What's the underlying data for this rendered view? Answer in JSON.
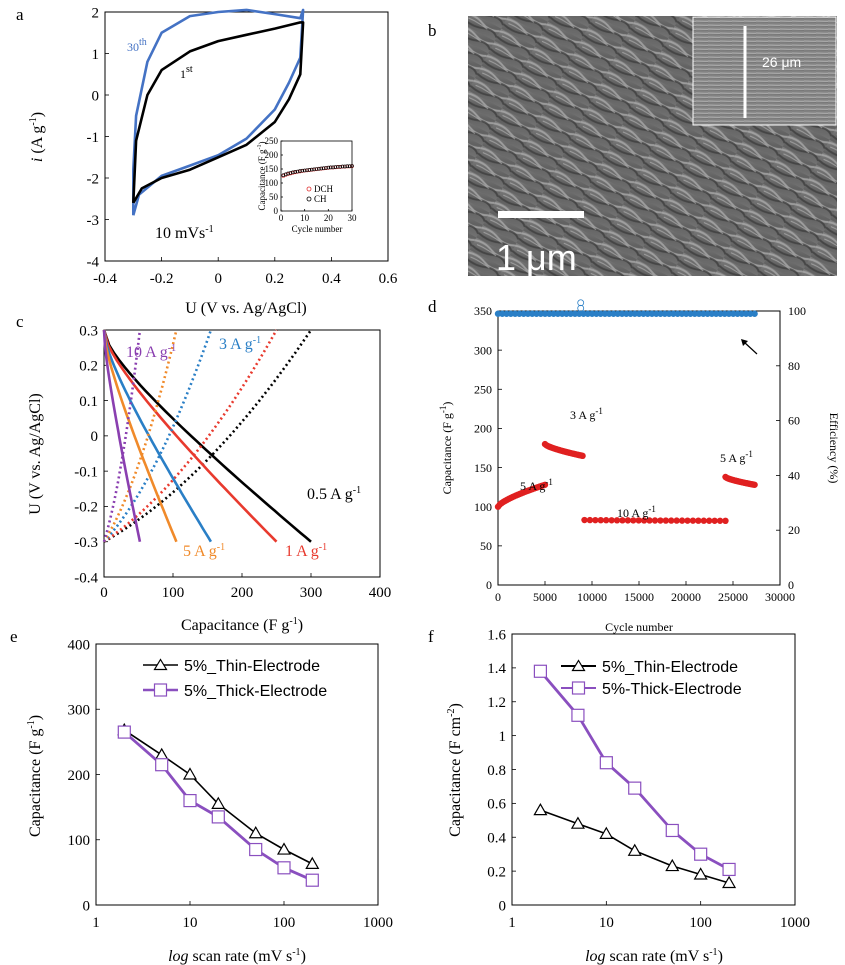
{
  "figure": {
    "panels": [
      "a",
      "b",
      "c",
      "d",
      "e",
      "f"
    ]
  },
  "chart_data": [
    {
      "id": "a",
      "type": "line",
      "xlabel": "U (V vs. Ag/AgCl)",
      "ylabel": "i (A g-1)",
      "xlim": [
        -0.4,
        0.6
      ],
      "ylim": [
        -4,
        2
      ],
      "x_ticks": [
        "-0.4",
        "-0.2",
        "0",
        "0.2",
        "0.4",
        "0.6"
      ],
      "y_ticks": [
        "-4",
        "-3",
        "-2",
        "-1",
        "0",
        "1",
        "2"
      ],
      "annotation": "10 mVs-1",
      "series": [
        {
          "name": "30th",
          "color": "#4472c4",
          "x": [
            -0.3,
            -0.28,
            -0.2,
            -0.1,
            0.0,
            0.1,
            0.2,
            0.25,
            0.29,
            0.3,
            0.29,
            0.2,
            0.1,
            0.0,
            -0.1,
            -0.2,
            -0.25,
            -0.29,
            -0.3,
            -0.3
          ],
          "y": [
            -2.9,
            -2.4,
            -1.95,
            -1.7,
            -1.45,
            -1.05,
            -0.35,
            0.3,
            0.9,
            2.05,
            1.85,
            1.95,
            2.05,
            2.0,
            1.9,
            1.5,
            0.8,
            -0.5,
            -1.8,
            -2.9
          ]
        },
        {
          "name": "1st",
          "color": "#000000",
          "x": [
            -0.3,
            -0.27,
            -0.2,
            -0.1,
            0.0,
            0.1,
            0.2,
            0.25,
            0.29,
            0.3,
            0.29,
            0.2,
            0.1,
            0.0,
            -0.1,
            -0.2,
            -0.25,
            -0.29,
            -0.3
          ],
          "y": [
            -2.6,
            -2.25,
            -2.0,
            -1.8,
            -1.5,
            -1.2,
            -0.65,
            -0.1,
            0.5,
            1.75,
            1.75,
            1.6,
            1.45,
            1.3,
            1.05,
            0.6,
            0.0,
            -1.1,
            -2.6
          ]
        }
      ],
      "inset": {
        "xlabel": "Cycle number",
        "ylabel": "Capacitance (F g-1)",
        "xlim": [
          0,
          30
        ],
        "ylim": [
          0,
          250
        ],
        "x_ticks": [
          "0",
          "10",
          "20",
          "30"
        ],
        "y_ticks": [
          "0",
          "50",
          "100",
          "150",
          "200",
          "250"
        ],
        "legend": [
          "DCH",
          "CH"
        ],
        "series": [
          {
            "name": "DCH",
            "color": "#e03030",
            "x": [
              1,
              2,
              3,
              4,
              5,
              6,
              7,
              8,
              9,
              10,
              11,
              12,
              13,
              14,
              15,
              16,
              17,
              18,
              19,
              20,
              21,
              22,
              23,
              24,
              25,
              26,
              27,
              28,
              29,
              30
            ],
            "y": [
              125,
              129,
              132,
              134,
              136,
              138,
              140,
              141,
              143,
              144,
              145,
              146,
              147,
              148,
              149,
              150,
              151,
              152,
              153,
              154,
              155,
              155,
              156,
              157,
              157,
              158,
              158,
              159,
              159,
              160
            ]
          },
          {
            "name": "CH",
            "color": "#000000",
            "x": [
              1,
              2,
              3,
              4,
              5,
              6,
              7,
              8,
              9,
              10,
              11,
              12,
              13,
              14,
              15,
              16,
              17,
              18,
              19,
              20,
              21,
              22,
              23,
              24,
              25,
              26,
              27,
              28,
              29,
              30
            ],
            "y": [
              128,
              131,
              134,
              136,
              138,
              140,
              141,
              143,
              144,
              145,
              146,
              147,
              148,
              149,
              150,
              151,
              152,
              153,
              154,
              155,
              156,
              156,
              157,
              158,
              158,
              159,
              159,
              160,
              160,
              161
            ]
          }
        ]
      }
    },
    {
      "id": "b",
      "type": "image",
      "scale_bar": "1 μm",
      "inset_scale": "26 μm"
    },
    {
      "id": "c",
      "type": "line",
      "xlabel": "Capacitance (F g-1)",
      "ylabel": "U (V vs. Ag/AgCl)",
      "xlim": [
        0,
        400
      ],
      "ylim": [
        -0.4,
        0.3
      ],
      "x_ticks": [
        "0",
        "100",
        "200",
        "300",
        "400"
      ],
      "y_ticks": [
        "-0.4",
        "-0.3",
        "-0.2",
        "-0.1",
        "0",
        "0.1",
        "0.2",
        "0.3"
      ],
      "labels": [
        "10 A g-1",
        "3 A g-1",
        "5 A g-1",
        "1 A g-1",
        "0.5 A g-1"
      ],
      "series": [
        {
          "name": "0.5 A g-1",
          "color": "#000000",
          "discharge_end": 300,
          "charge_end": 300
        },
        {
          "name": "1 A g-1",
          "color": "#e83a2e",
          "discharge_end": 250,
          "charge_end": 250
        },
        {
          "name": "3 A g-1",
          "color": "#2a7fc6",
          "discharge_end": 155,
          "charge_end": 155
        },
        {
          "name": "5 A g-1",
          "color": "#f08a2a",
          "discharge_end": 105,
          "charge_end": 105
        },
        {
          "name": "10 A g-1",
          "color": "#8a3fb0",
          "discharge_end": 52,
          "charge_end": 52
        }
      ]
    },
    {
      "id": "d",
      "type": "scatter",
      "xlabel": "Cycle number",
      "ylabel": "Capacitance (F g-1)",
      "y2label": "Efficiency (%)",
      "xlim": [
        0,
        30000
      ],
      "ylim": [
        0,
        350
      ],
      "y2lim": [
        0,
        100
      ],
      "x_ticks": [
        "0",
        "5000",
        "10000",
        "15000",
        "20000",
        "25000",
        "30000"
      ],
      "y_ticks": [
        "0",
        "50",
        "100",
        "150",
        "200",
        "250",
        "300",
        "350"
      ],
      "y2_ticks": [
        "0",
        "20",
        "40",
        "60",
        "80",
        "100"
      ],
      "labels": [
        "5 A g-1",
        "3 A g-1",
        "10 A g-1",
        "5 A g-1"
      ],
      "series": [
        {
          "name": "Capacitance",
          "color": "#e02020",
          "segments": [
            {
              "x0": 0,
              "x1": 5000,
              "y0": 100,
              "y1": 128
            },
            {
              "x0": 5000,
              "x1": 9000,
              "y0": 180,
              "y1": 165
            },
            {
              "x0": 9200,
              "x1": 24200,
              "y0": 83,
              "y1": 82
            },
            {
              "x0": 24200,
              "x1": 27300,
              "y0": 138,
              "y1": 128
            }
          ]
        },
        {
          "name": "Efficiency",
          "color": "#2a7fc6",
          "x0": 0,
          "x1": 27300,
          "y": 99
        }
      ]
    },
    {
      "id": "e",
      "type": "line",
      "xlabel": "log scan rate (mV s-1)",
      "ylabel": "Capacitance (F g-1)",
      "xscale": "log",
      "xlim": [
        1,
        1000
      ],
      "ylim": [
        0,
        400
      ],
      "x_ticks": [
        "1",
        "10",
        "100",
        "1000"
      ],
      "y_ticks": [
        "0",
        "100",
        "200",
        "300",
        "400"
      ],
      "x": [
        2,
        5,
        10,
        20,
        50,
        100,
        200
      ],
      "series": [
        {
          "name": "5%_Thin-Electrode",
          "color": "#000000",
          "marker": "triangle",
          "values": [
            268,
            230,
            200,
            155,
            110,
            85,
            63
          ]
        },
        {
          "name": "5%_Thick-Electrode",
          "color": "#8a4fbf",
          "marker": "square",
          "values": [
            265,
            215,
            160,
            135,
            85,
            57,
            38
          ]
        }
      ]
    },
    {
      "id": "f",
      "type": "line",
      "xlabel": "log scan rate (mV s-1)",
      "ylabel": "Capacitance (F cm-2)",
      "xscale": "log",
      "xlim": [
        1,
        1000
      ],
      "ylim": [
        0,
        1.6
      ],
      "x_ticks": [
        "1",
        "10",
        "100",
        "1000"
      ],
      "y_ticks": [
        "0",
        "0.2",
        "0.4",
        "0.6",
        "0.8",
        "1",
        "1.2",
        "1.4",
        "1.6"
      ],
      "x": [
        2,
        5,
        10,
        20,
        50,
        100,
        200
      ],
      "series": [
        {
          "name": "5%_Thin-Electrode",
          "color": "#000000",
          "marker": "triangle",
          "values": [
            0.56,
            0.48,
            0.42,
            0.32,
            0.23,
            0.18,
            0.13
          ]
        },
        {
          "name": "5%-Thick-Electrode",
          "color": "#8a4fbf",
          "marker": "square",
          "values": [
            1.38,
            1.12,
            0.84,
            0.69,
            0.44,
            0.3,
            0.21
          ]
        }
      ]
    }
  ]
}
